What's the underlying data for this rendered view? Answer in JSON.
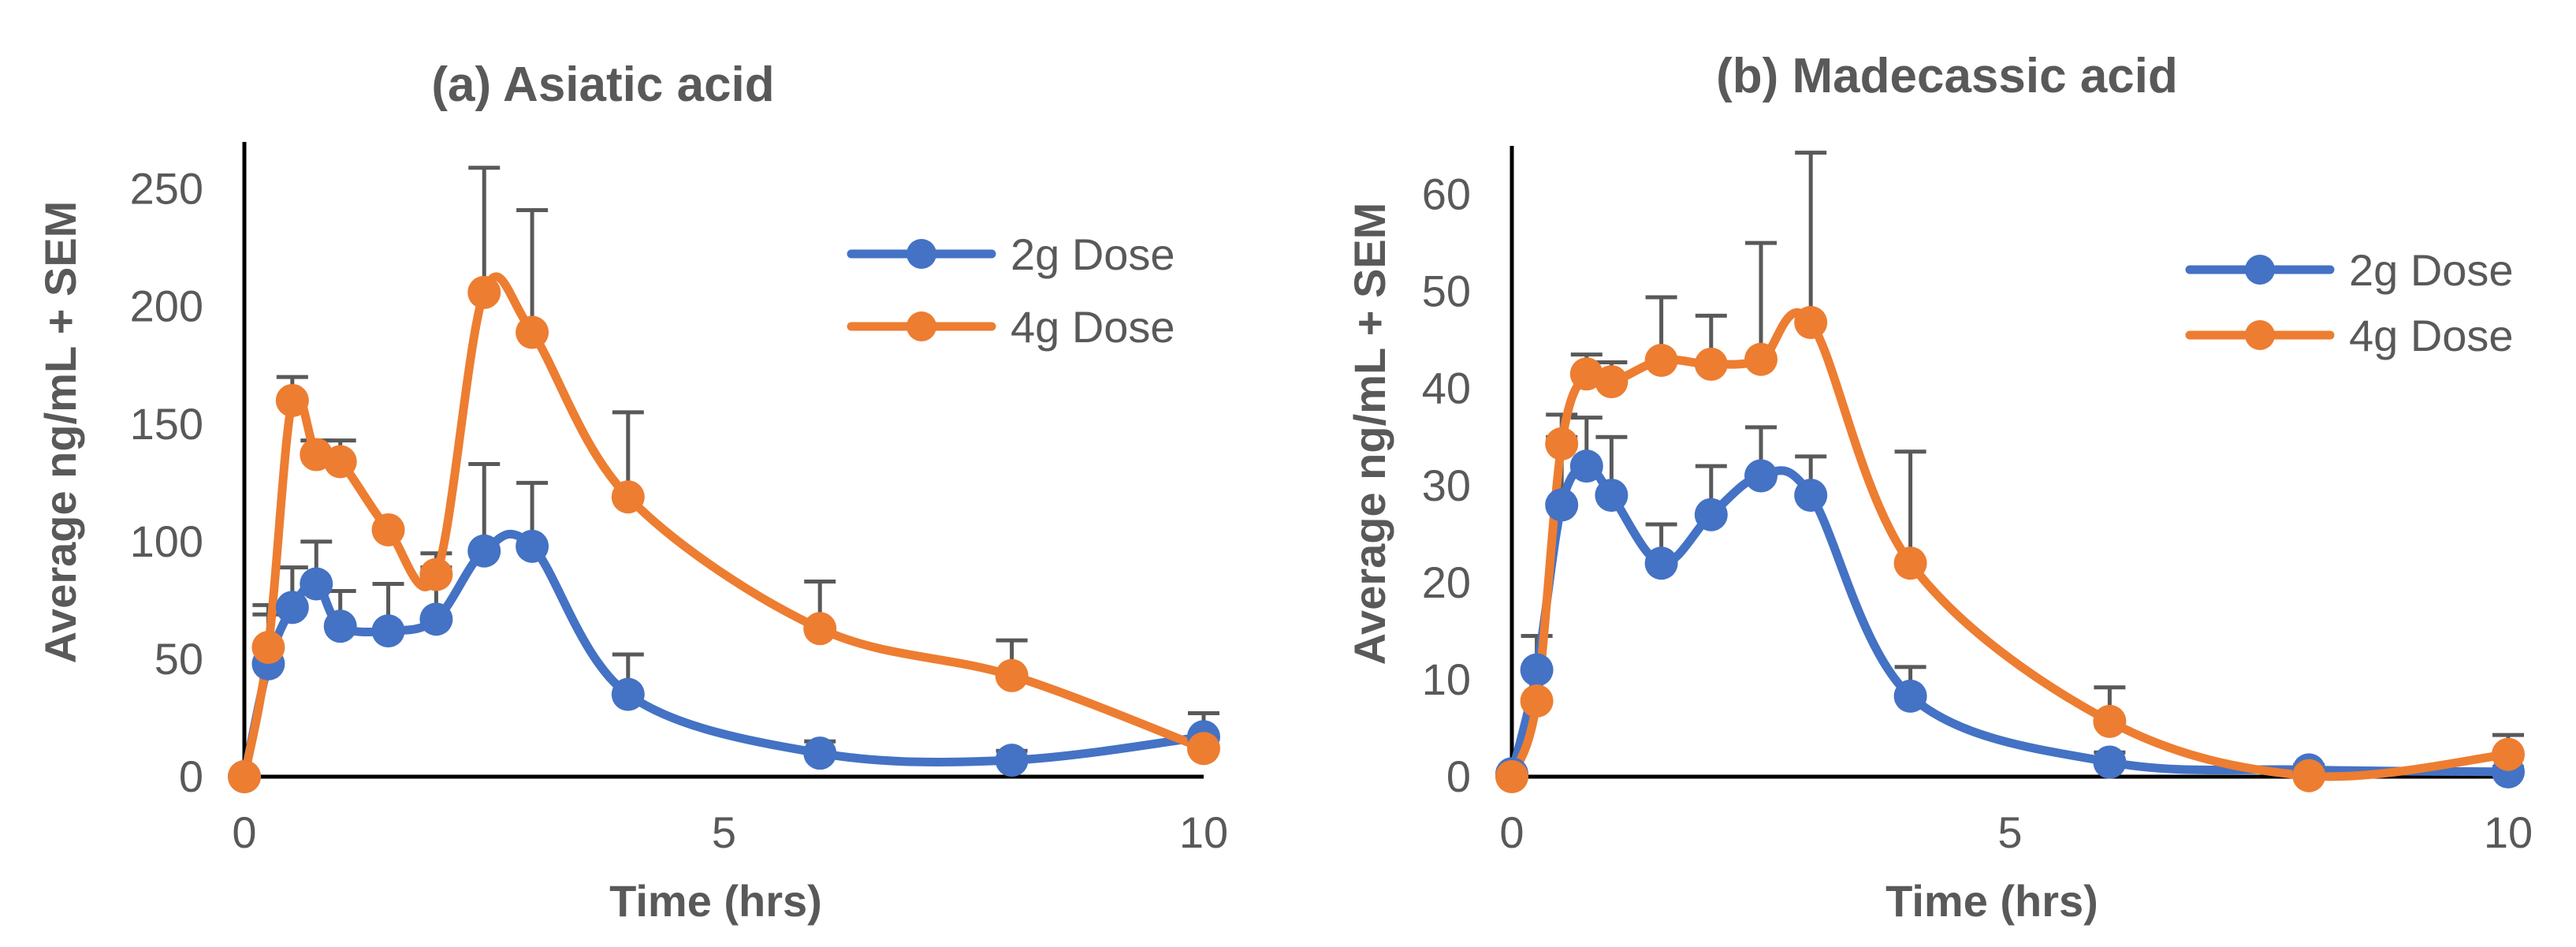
{
  "chart_data": [
    {
      "type": "line",
      "title": "(a) Asiatic acid",
      "xlabel": "Time (hrs)",
      "ylabel": "Average ng/mL + SEM",
      "xlim": [
        0,
        10
      ],
      "ylim": [
        0,
        270
      ],
      "xticks": [
        0,
        5,
        10
      ],
      "yticks": [
        0,
        50,
        100,
        150,
        200,
        250
      ],
      "legend_position": "top-right",
      "series": [
        {
          "name": "2g Dose",
          "color": "#4472C4",
          "x": [
            0,
            0.25,
            0.5,
            0.75,
            1,
            1.5,
            2,
            2.5,
            3,
            4,
            6,
            8,
            10
          ],
          "y": [
            0,
            48,
            72,
            82,
            64,
            62,
            67,
            96,
            98,
            35,
            10,
            7,
            17
          ],
          "err": [
            0,
            25,
            17,
            18,
            15,
            20,
            22,
            37,
            27,
            17,
            5,
            4,
            10
          ]
        },
        {
          "name": "4g Dose",
          "color": "#ED7D31",
          "x": [
            0,
            0.25,
            0.5,
            0.75,
            1,
            1.5,
            2,
            2.5,
            3,
            4,
            6,
            8,
            10
          ],
          "y": [
            0,
            55,
            160,
            137,
            134,
            105,
            86,
            206,
            189,
            119,
            63,
            43,
            12
          ],
          "err": [
            0,
            14,
            10,
            6,
            9,
            0,
            9,
            53,
            52,
            36,
            20,
            15,
            0
          ]
        }
      ]
    },
    {
      "type": "line",
      "title": "(b) Madecassic acid",
      "xlabel": "Time (hrs)",
      "ylabel": "Average ng/mL + SEM",
      "xlim": [
        0,
        10
      ],
      "ylim": [
        0,
        65
      ],
      "xticks": [
        0,
        5,
        10
      ],
      "yticks": [
        0,
        10,
        20,
        30,
        40,
        50,
        60
      ],
      "legend_position": "top-right",
      "series": [
        {
          "name": "2g Dose",
          "color": "#4472C4",
          "x": [
            0,
            0.25,
            0.5,
            0.75,
            1,
            1.5,
            2,
            2.5,
            3,
            4,
            6,
            8,
            10
          ],
          "y": [
            0.3,
            11,
            28,
            32,
            29,
            22,
            27,
            31,
            29,
            8.3,
            1.5,
            0.7,
            0.5
          ],
          "err": [
            0,
            3.5,
            7,
            5,
            6,
            4,
            5,
            5,
            4,
            3,
            1,
            0.5,
            0.5
          ]
        },
        {
          "name": "4g Dose",
          "color": "#ED7D31",
          "x": [
            0,
            0.25,
            0.5,
            0.75,
            1,
            1.5,
            2,
            2.5,
            3,
            4,
            6,
            8,
            10
          ],
          "y": [
            0,
            7.8,
            34.3,
            41.5,
            40.7,
            42.9,
            42.5,
            43,
            46.8,
            22,
            5.7,
            0.1,
            2.3
          ],
          "err": [
            0,
            3,
            3,
            2,
            2,
            6.5,
            5,
            12,
            17.5,
            11.5,
            3.5,
            0,
            2
          ]
        }
      ]
    }
  ]
}
